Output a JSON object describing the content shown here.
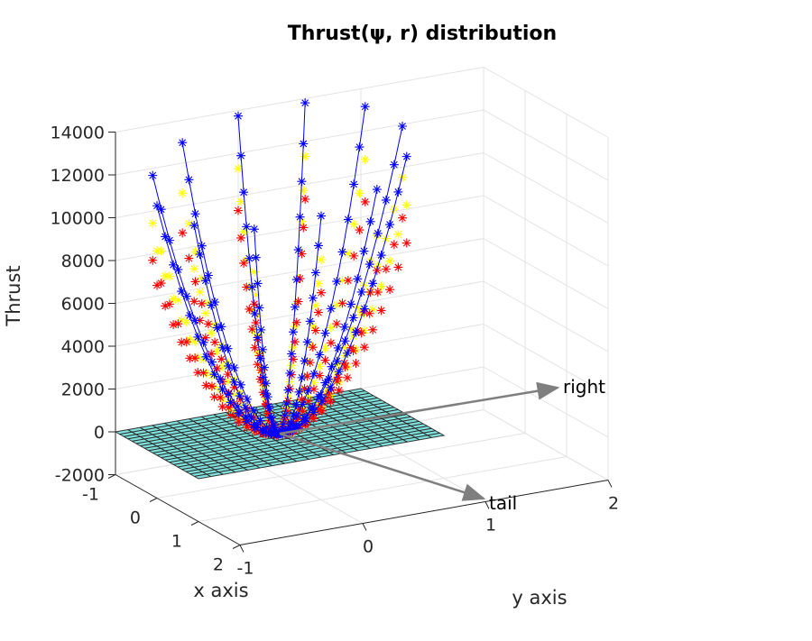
{
  "chart_data": {
    "type": "scatter",
    "title": "Thrust(ψ, r) distribution",
    "xlabel": "x axis",
    "ylabel": "y axis",
    "zlabel": "Thrust",
    "xlim": [
      -1,
      2
    ],
    "ylim": [
      -1,
      2
    ],
    "zlim": [
      -2000,
      14000
    ],
    "x_ticks": [
      "-1",
      "0",
      "1",
      "2"
    ],
    "y_ticks": [
      "-1",
      "0",
      "1",
      "2"
    ],
    "z_ticks": [
      "-2000",
      "0",
      "2000",
      "4000",
      "6000",
      "8000",
      "10000",
      "12000",
      "14000"
    ],
    "grid": true,
    "blade_azimuths_deg": [
      0,
      30,
      60,
      90,
      120,
      150,
      180,
      210,
      240,
      270,
      300,
      330
    ],
    "radial_stations": [
      0.0,
      0.067,
      0.133,
      0.2,
      0.267,
      0.333,
      0.4,
      0.467,
      0.533,
      0.6,
      0.667,
      0.733,
      0.8,
      0.867,
      0.933,
      1.0
    ],
    "series": [
      {
        "color": "#0000ff",
        "marker": "*",
        "line": true,
        "tip_thrust_range": [
          11000,
          14000
        ]
      },
      {
        "color": "#ffff00",
        "marker": "*",
        "line": false,
        "tip_thrust_range": [
          9000,
          11500
        ]
      },
      {
        "color": "#ff0000",
        "marker": "*",
        "line": false,
        "tip_thrust_range": [
          7500,
          9500
        ]
      }
    ],
    "plane": {
      "z": 0,
      "x_range": [
        -1,
        1
      ],
      "y_range": [
        -1,
        1
      ],
      "color": "#7fe0dc"
    },
    "annotations": [
      {
        "text": "right",
        "direction": "+y"
      },
      {
        "text": "tail",
        "direction": "+x"
      }
    ]
  }
}
